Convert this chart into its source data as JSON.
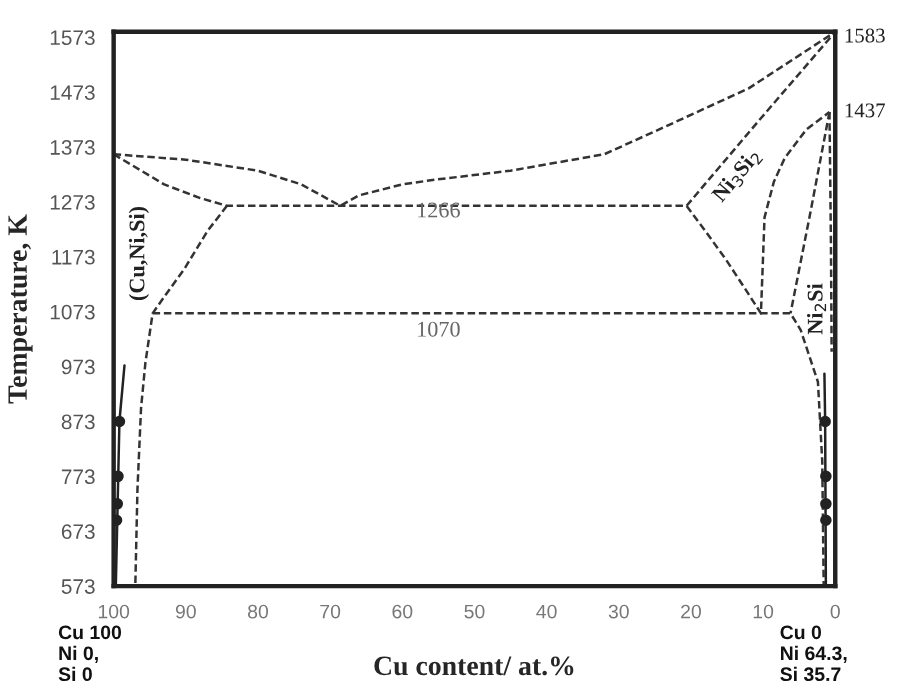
{
  "chart_data": {
    "type": "line",
    "xlabel": "Cu content/ at.%",
    "ylabel": "Temperature, K",
    "xlim": [
      100,
      0
    ],
    "xticks": [
      100,
      90,
      80,
      70,
      60,
      50,
      40,
      30,
      20,
      10,
      0
    ],
    "ylim": [
      573,
      1583
    ],
    "yticks": [
      573,
      673,
      773,
      873,
      973,
      1073,
      1173,
      1273,
      1373,
      1473,
      1573
    ],
    "line_style": "dashed",
    "marker": "none",
    "series": [
      {
        "color": "#333333",
        "x": [
          100,
          90,
          80,
          74,
          68.6,
          66,
          60,
          55.8,
          45,
          32,
          24.1,
          12,
          0
        ],
        "values": [
          1360,
          1350,
          1330,
          1305,
          1266,
          1285,
          1305,
          1313,
          1330,
          1360,
          1407,
          1480,
          1583
        ]
      },
      {
        "color": "#333333",
        "x": [
          100,
          93,
          88,
          84.3,
          20.6,
          18,
          15.2,
          12.5,
          10.3,
          9.8,
          8.5,
          7,
          4,
          0.8
        ],
        "values": [
          1360,
          1305,
          1280,
          1266,
          1266,
          1220,
          1169,
          1115,
          1070,
          1245,
          1310,
          1353,
          1405,
          1437
        ]
      },
      {
        "color": "#333333",
        "x": [
          20.6,
          10.6,
          0
        ],
        "values": [
          1266,
          1421,
          1583
        ]
      },
      {
        "color": "#333333",
        "x": [
          84.3,
          87,
          90.2,
          93,
          94.6,
          95.6,
          96.2,
          96.7,
          97
        ],
        "values": [
          1266,
          1220,
          1151,
          1100,
          1070,
          980,
          898,
          750,
          573
        ]
      },
      {
        "color": "#333333",
        "x": [
          0.8,
          3.5,
          6.2
        ],
        "values": [
          1437,
          1250,
          1070
        ]
      },
      {
        "color": "#333333",
        "x": [
          94.6,
          6.2,
          4.8,
          2.4,
          1.8,
          1.6
        ],
        "values": [
          1070,
          1070,
          1040,
          945,
          800,
          573
        ]
      },
      {
        "color": "#333333",
        "x": [
          0.8,
          0.6,
          0.5
        ],
        "values": [
          1437,
          1200,
          1000
        ]
      },
      {
        "color": "#222222",
        "line_style": "solid",
        "x": [
          99.7,
          99.2,
          98.5
        ],
        "values": [
          573,
          873,
          975
        ]
      },
      {
        "type": "scatter",
        "color": "#222222",
        "marker": "circle",
        "x": [
          99.6,
          99.5,
          99.4,
          99.2
        ],
        "values": [
          693,
          723,
          773,
          873
        ]
      },
      {
        "color": "#222222",
        "line_style": "solid",
        "x": [
          1.3,
          1.4,
          1.5
        ],
        "values": [
          573,
          873,
          960
        ]
      },
      {
        "type": "scatter",
        "color": "#222222",
        "marker": "circle",
        "x": [
          1.3,
          1.3,
          1.3,
          1.4
        ],
        "values": [
          693,
          723,
          773,
          873
        ]
      }
    ],
    "annotations": [
      "1266",
      "1070",
      "(Cu,Ni,Si)",
      "Ni$_{3}$Si$_{2}$",
      "Ni$_{2}$Si",
      "1583",
      "1437",
      "Cu 100\nNi 0,\nSi 0",
      "Cu 0\nNi 64.3,\nSi 35.7"
    ]
  }
}
